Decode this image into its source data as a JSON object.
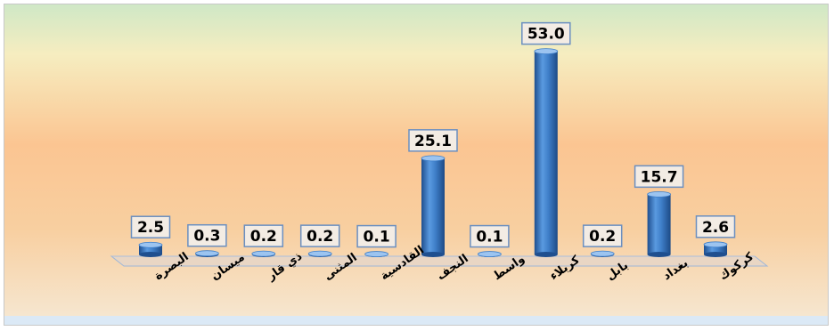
{
  "chart_data": {
    "type": "bar",
    "categories": [
      "البصرة",
      "ميسان",
      "ذي قار",
      "المثنى",
      "القادسية",
      "النجف",
      "واسط",
      "كربلاء",
      "بابل",
      "بغداد",
      "كركوك"
    ],
    "values": [
      2.5,
      0.3,
      0.2,
      0.2,
      0.1,
      25.1,
      0.1,
      53.0,
      0.2,
      15.7,
      2.6
    ],
    "value_labels": [
      "2.5",
      "0.3",
      "0.2",
      "0.2",
      "0.1",
      "25.1",
      "0.1",
      "53.0",
      "0.2",
      "15.7",
      "2.6"
    ],
    "title": "",
    "xlabel": "",
    "ylabel": "",
    "ylim": [
      0,
      55
    ],
    "grid": false,
    "legend": "none",
    "colors": {
      "bar": "#3f7fc9",
      "bar_dark": "#1f4f8f",
      "bar_light": "#9cc4f0",
      "label_border": "#6b8fc0",
      "bg_top": "#cfe8c6",
      "bg_mid": "#fbc592",
      "bg_bottom": "#dbe9f6"
    }
  }
}
